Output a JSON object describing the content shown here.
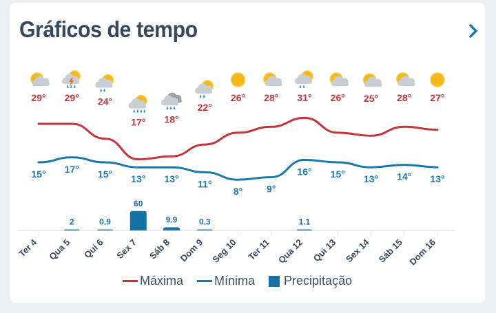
{
  "header": {
    "title": "Gráficos de tempo",
    "next_icon": "chevron-right-icon"
  },
  "colors": {
    "max": "#c4353a",
    "min": "#1a78ad",
    "bar": "#1472a8",
    "text": "#34495e"
  },
  "chart_data": {
    "type": "line",
    "categories": [
      "Ter 4",
      "Qua 5",
      "Qui 6",
      "Sex 7",
      "Sáb 8",
      "Dom 9",
      "Seg 10",
      "Ter 11",
      "Qua 12",
      "Qui 13",
      "Sex 14",
      "Sáb 15",
      "Dom 16"
    ],
    "icons": [
      "partly-cloudy",
      "thunderstorm",
      "rain-sun",
      "heavy-rain-sun",
      "cloud-rain",
      "rain-sun",
      "sun",
      "partly-cloudy",
      "rain-sun",
      "partly-cloudy",
      "partly-cloudy",
      "partly-cloudy",
      "sun"
    ],
    "series": [
      {
        "name": "Máxima",
        "type": "line",
        "values": [
          29,
          29,
          24,
          17,
          18,
          22,
          26,
          28,
          31,
          26,
          25,
          28,
          27
        ]
      },
      {
        "name": "Mínima",
        "type": "line",
        "values": [
          15,
          17,
          15,
          13,
          13,
          11,
          8,
          9,
          16,
          15,
          13,
          14,
          13
        ]
      },
      {
        "name": "Precipitação",
        "type": "bar",
        "values": [
          null,
          2,
          0.9,
          60,
          9.9,
          0.3,
          null,
          null,
          1.1,
          null,
          null,
          null,
          null
        ],
        "labels": [
          "",
          "2",
          "0.9",
          "60",
          "9.9",
          "0.3",
          "",
          "",
          "1.1",
          "",
          "",
          "",
          ""
        ]
      }
    ],
    "max_labels": [
      "29°",
      "29°",
      "24°",
      "17°",
      "18°",
      "22°",
      "26°",
      "28°",
      "31°",
      "26°",
      "25°",
      "28°",
      "27°"
    ],
    "min_labels": [
      "15°",
      "17°",
      "15°",
      "13°",
      "13°",
      "11°",
      "8°",
      "9°",
      "16°",
      "15°",
      "13°",
      "14°",
      "13°"
    ],
    "legend_position": "bottom"
  },
  "legend": {
    "max": "Máxima",
    "min": "Mínima",
    "precip": "Precipitação"
  }
}
